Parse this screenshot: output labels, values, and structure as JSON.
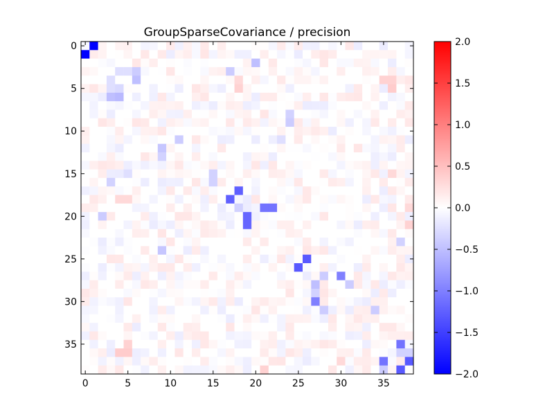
{
  "chart_data": {
    "type": "heatmap",
    "title": "GroupSparseCovariance / precision",
    "xlabel": "",
    "ylabel": "",
    "n_rows": 39,
    "n_cols": 39,
    "xlim": [
      -0.5,
      38.5
    ],
    "ylim": [
      38.5,
      -0.5
    ],
    "x_ticks": [
      0,
      5,
      10,
      15,
      20,
      25,
      30,
      35
    ],
    "y_ticks": [
      0,
      5,
      10,
      15,
      20,
      25,
      30,
      35
    ],
    "colormap": "bwr",
    "color_low": "#0000ff",
    "color_mid": "#ffffff",
    "color_high": "#ff0000",
    "vmin": -2.0,
    "vmax": 2.0,
    "colorbar_ticks": [
      "2.0",
      "1.5",
      "1.0",
      "0.5",
      "0.0",
      "−0.5",
      "−1.0",
      "−1.5",
      "−2.0"
    ],
    "colorbar_tick_values": [
      2.0,
      1.5,
      1.0,
      0.5,
      0.0,
      -0.5,
      -1.0,
      -1.5,
      -2.0
    ],
    "grid": false,
    "background_cell_value_range": [
      -0.15,
      0.2
    ],
    "highlighted_cells": [
      {
        "row": 0,
        "col": 1,
        "value": -2.0
      },
      {
        "row": 1,
        "col": 0,
        "value": -2.0
      },
      {
        "row": 2,
        "col": 20,
        "value": -0.5
      },
      {
        "row": 3,
        "col": 17,
        "value": -0.4
      },
      {
        "row": 3,
        "col": 4,
        "value": -0.25
      },
      {
        "row": 3,
        "col": 5,
        "value": -0.25
      },
      {
        "row": 3,
        "col": 6,
        "value": -0.4
      },
      {
        "row": 4,
        "col": 3,
        "value": -0.25
      },
      {
        "row": 4,
        "col": 6,
        "value": -0.5
      },
      {
        "row": 5,
        "col": 3,
        "value": -0.25
      },
      {
        "row": 5,
        "col": 4,
        "value": -0.3
      },
      {
        "row": 6,
        "col": 3,
        "value": -0.5
      },
      {
        "row": 6,
        "col": 4,
        "value": -0.55
      },
      {
        "row": 4,
        "col": 35,
        "value": 0.35
      },
      {
        "row": 4,
        "col": 36,
        "value": 0.35
      },
      {
        "row": 5,
        "col": 36,
        "value": 0.4
      },
      {
        "row": 4,
        "col": 18,
        "value": 0.3
      },
      {
        "row": 5,
        "col": 18,
        "value": 0.35
      },
      {
        "row": 11,
        "col": 11,
        "value": -0.4
      },
      {
        "row": 8,
        "col": 24,
        "value": -0.35
      },
      {
        "row": 9,
        "col": 24,
        "value": -0.4
      },
      {
        "row": 11,
        "col": 23,
        "value": -0.25
      },
      {
        "row": 12,
        "col": 9,
        "value": -0.45
      },
      {
        "row": 13,
        "col": 9,
        "value": -0.35
      },
      {
        "row": 15,
        "col": 5,
        "value": -0.25
      },
      {
        "row": 15,
        "col": 15,
        "value": -0.35
      },
      {
        "row": 16,
        "col": 15,
        "value": -0.35
      },
      {
        "row": 16,
        "col": 3,
        "value": -0.35
      },
      {
        "row": 17,
        "col": 18,
        "value": -1.25
      },
      {
        "row": 18,
        "col": 17,
        "value": -1.25
      },
      {
        "row": 19,
        "col": 18,
        "value": -0.35
      },
      {
        "row": 19,
        "col": 21,
        "value": -1.1
      },
      {
        "row": 19,
        "col": 22,
        "value": -1.1
      },
      {
        "row": 20,
        "col": 19,
        "value": -1.2
      },
      {
        "row": 21,
        "col": 19,
        "value": -1.2
      },
      {
        "row": 20,
        "col": 2,
        "value": -0.4
      },
      {
        "row": 23,
        "col": 37,
        "value": -0.35
      },
      {
        "row": 24,
        "col": 9,
        "value": -0.45
      },
      {
        "row": 25,
        "col": 26,
        "value": -1.3
      },
      {
        "row": 26,
        "col": 25,
        "value": -1.3
      },
      {
        "row": 27,
        "col": 28,
        "value": -0.4
      },
      {
        "row": 27,
        "col": 30,
        "value": -1.0
      },
      {
        "row": 28,
        "col": 27,
        "value": -0.5
      },
      {
        "row": 28,
        "col": 31,
        "value": -0.4
      },
      {
        "row": 29,
        "col": 27,
        "value": -0.35
      },
      {
        "row": 30,
        "col": 27,
        "value": -1.0
      },
      {
        "row": 31,
        "col": 28,
        "value": -0.4
      },
      {
        "row": 31,
        "col": 34,
        "value": -0.4
      },
      {
        "row": 35,
        "col": 37,
        "value": -1.1
      },
      {
        "row": 37,
        "col": 35,
        "value": -1.1
      },
      {
        "row": 38,
        "col": 37,
        "value": -1.3
      },
      {
        "row": 37,
        "col": 38,
        "value": -1.3
      },
      {
        "row": 38,
        "col": 35,
        "value": -0.4
      },
      {
        "row": 36,
        "col": 37,
        "value": -0.35
      },
      {
        "row": 36,
        "col": 38,
        "value": -0.35
      },
      {
        "row": 36,
        "col": 4,
        "value": 0.4
      },
      {
        "row": 36,
        "col": 5,
        "value": 0.4
      },
      {
        "row": 35,
        "col": 5,
        "value": 0.35
      },
      {
        "row": 18,
        "col": 4,
        "value": 0.3
      },
      {
        "row": 18,
        "col": 5,
        "value": 0.3
      },
      {
        "row": 38,
        "col": 21,
        "value": 0.35
      },
      {
        "row": 37,
        "col": 30,
        "value": 0.3
      },
      {
        "row": 21,
        "col": 38,
        "value": 0.35
      },
      {
        "row": 19,
        "col": 38,
        "value": 0.3
      },
      {
        "row": 15,
        "col": 36,
        "value": 0.3
      }
    ]
  }
}
